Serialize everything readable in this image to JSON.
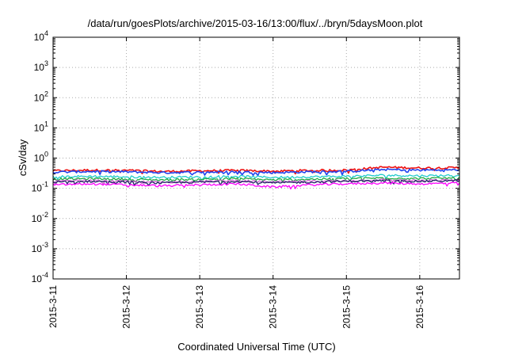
{
  "chart_data": {
    "type": "line",
    "title": "/data/run/goesPlots/archive/2015-03-16/13:00/flux/../bryn/5daysMoon.plot",
    "xlabel": "Coordinated Universal Time (UTC)",
    "ylabel": "cSv/day",
    "y_scale": "log",
    "ylim": [
      0.0001,
      10000
    ],
    "y_ticks": [
      {
        "base": "10",
        "exp": "-4",
        "value": 0.0001
      },
      {
        "base": "10",
        "exp": "-3",
        "value": 0.001
      },
      {
        "base": "10",
        "exp": "-2",
        "value": 0.01
      },
      {
        "base": "10",
        "exp": "-1",
        "value": 0.1
      },
      {
        "base": "10",
        "exp": "0",
        "value": 1
      },
      {
        "base": "10",
        "exp": "1",
        "value": 10
      },
      {
        "base": "10",
        "exp": "2",
        "value": 100
      },
      {
        "base": "10",
        "exp": "3",
        "value": 1000
      },
      {
        "base": "10",
        "exp": "4",
        "value": 10000
      }
    ],
    "xlim": [
      "2015-03-11",
      "2015-03-16 13:00"
    ],
    "x_ticks": [
      "2015-3-11",
      "2015-3-12",
      "2015-3-13",
      "2015-3-14",
      "2015-3-15",
      "2015-3-16"
    ],
    "grid": true,
    "series": [
      {
        "color": "#ee1111",
        "x": [
          "2015-03-11",
          "2015-03-11 12:00",
          "2015-03-12",
          "2015-03-12 12:00",
          "2015-03-13",
          "2015-03-13 12:00",
          "2015-03-14",
          "2015-03-14 12:00",
          "2015-03-15",
          "2015-03-15 12:00",
          "2015-03-16",
          "2015-03-16 13:00"
        ],
        "values": [
          0.38,
          0.4,
          0.39,
          0.36,
          0.38,
          0.39,
          0.37,
          0.39,
          0.4,
          0.5,
          0.47,
          0.48
        ]
      },
      {
        "color": "#2244ee",
        "x": [
          "2015-03-11",
          "2015-03-11 12:00",
          "2015-03-12",
          "2015-03-12 12:00",
          "2015-03-13",
          "2015-03-13 12:00",
          "2015-03-14",
          "2015-03-14 12:00",
          "2015-03-15",
          "2015-03-15 12:00",
          "2015-03-16",
          "2015-03-16 13:00"
        ],
        "values": [
          0.34,
          0.36,
          0.35,
          0.33,
          0.34,
          0.35,
          0.33,
          0.35,
          0.36,
          0.42,
          0.4,
          0.41
        ]
      },
      {
        "color": "#22cccc",
        "x": [
          "2015-03-11",
          "2015-03-11 12:00",
          "2015-03-12",
          "2015-03-12 12:00",
          "2015-03-13",
          "2015-03-13 12:00",
          "2015-03-14",
          "2015-03-14 12:00",
          "2015-03-15",
          "2015-03-15 12:00",
          "2015-03-16",
          "2015-03-16 13:00"
        ],
        "values": [
          0.24,
          0.25,
          0.24,
          0.23,
          0.24,
          0.25,
          0.23,
          0.24,
          0.25,
          0.27,
          0.26,
          0.27
        ]
      },
      {
        "color": "#22aa44",
        "x": [
          "2015-03-11",
          "2015-03-11 12:00",
          "2015-03-12",
          "2015-03-12 12:00",
          "2015-03-13",
          "2015-03-13 12:00",
          "2015-03-14",
          "2015-03-14 12:00",
          "2015-03-15",
          "2015-03-15 12:00",
          "2015-03-16",
          "2015-03-16 13:00"
        ],
        "values": [
          0.2,
          0.21,
          0.2,
          0.19,
          0.2,
          0.21,
          0.19,
          0.2,
          0.21,
          0.22,
          0.21,
          0.22
        ]
      },
      {
        "color": "#cc66cc",
        "x": [
          "2015-03-11",
          "2015-03-11 12:00",
          "2015-03-12",
          "2015-03-12 12:00",
          "2015-03-13",
          "2015-03-13 12:00",
          "2015-03-14",
          "2015-03-14 12:00",
          "2015-03-15",
          "2015-03-15 12:00",
          "2015-03-16",
          "2015-03-16 13:00"
        ],
        "values": [
          0.17,
          0.18,
          0.17,
          0.16,
          0.17,
          0.18,
          0.16,
          0.17,
          0.18,
          0.19,
          0.18,
          0.19
        ]
      },
      {
        "color": "#222266",
        "x": [
          "2015-03-11",
          "2015-03-11 12:00",
          "2015-03-12",
          "2015-03-12 12:00",
          "2015-03-13",
          "2015-03-13 12:00",
          "2015-03-14",
          "2015-03-14 12:00",
          "2015-03-15",
          "2015-03-15 12:00",
          "2015-03-16",
          "2015-03-16 13:00"
        ],
        "values": [
          0.16,
          0.17,
          0.16,
          0.15,
          0.16,
          0.17,
          0.15,
          0.16,
          0.17,
          0.18,
          0.17,
          0.18
        ]
      },
      {
        "color": "#ff00ff",
        "x": [
          "2015-03-11",
          "2015-03-11 12:00",
          "2015-03-12",
          "2015-03-12 12:00",
          "2015-03-13",
          "2015-03-13 12:00",
          "2015-03-14",
          "2015-03-14 12:00",
          "2015-03-15",
          "2015-03-15 12:00",
          "2015-03-16",
          "2015-03-16 13:00"
        ],
        "values": [
          0.13,
          0.14,
          0.13,
          0.12,
          0.13,
          0.14,
          0.11,
          0.13,
          0.14,
          0.15,
          0.14,
          0.15
        ]
      }
    ]
  }
}
